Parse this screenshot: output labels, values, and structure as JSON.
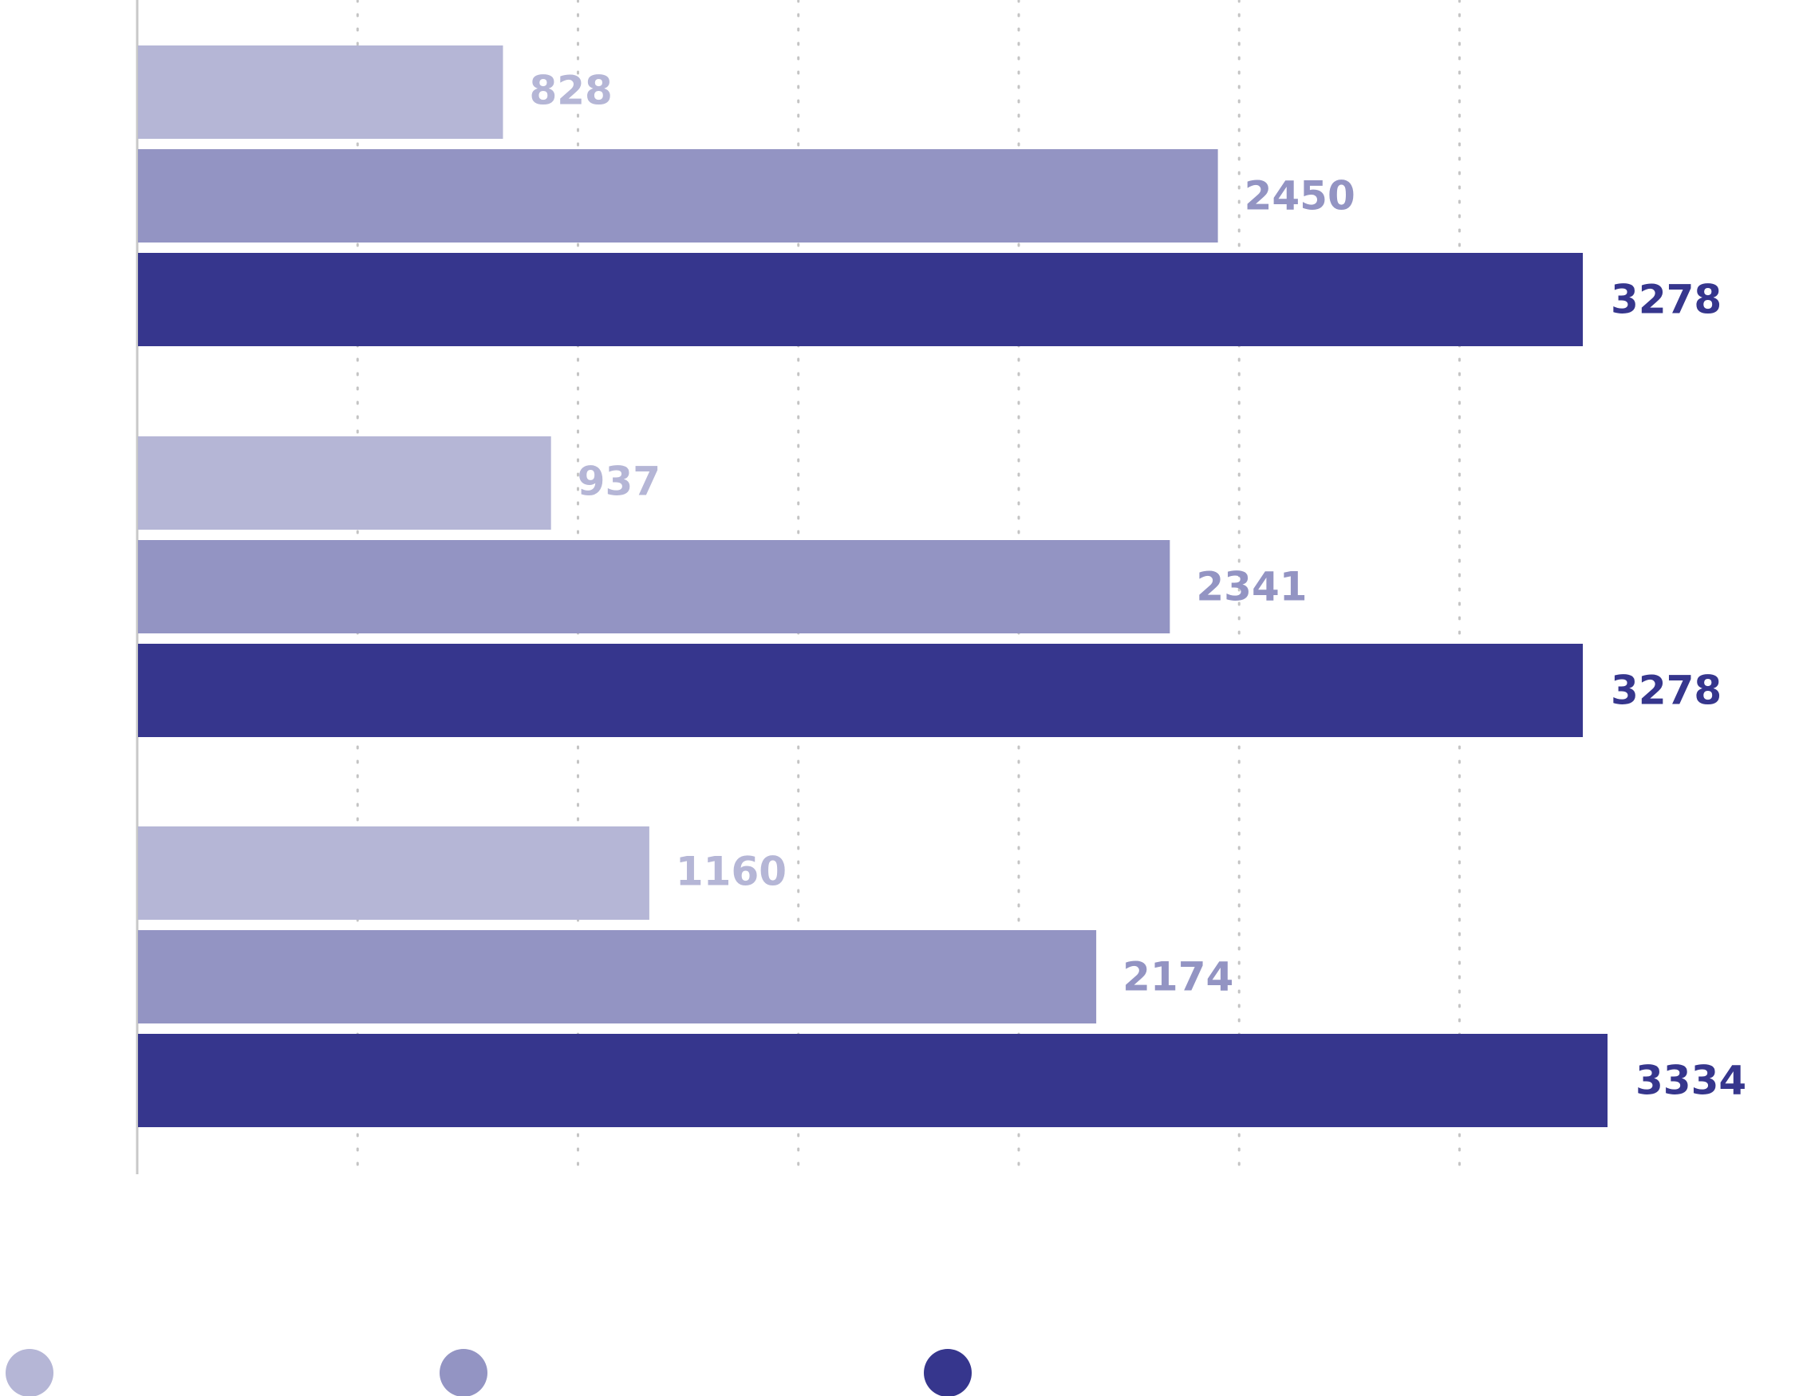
{
  "chart_data": {
    "type": "bar",
    "orientation": "horizontal",
    "title": "",
    "xlabel": "",
    "ylabel": "",
    "categories": [
      "",
      "",
      ""
    ],
    "xlim": [
      0,
      3500
    ],
    "grid": "vertical-dotted",
    "legend": "bottom",
    "series": [
      {
        "name": "",
        "color": "#b5b6d6",
        "values": [
          828,
          937,
          1160
        ]
      },
      {
        "name": "",
        "color": "#9394c3",
        "values": [
          2450,
          2341,
          2174
        ]
      },
      {
        "name": "",
        "color": "#36368d",
        "values": [
          3278,
          3278,
          3334
        ]
      }
    ],
    "data_labels": [
      [
        "828",
        "937",
        "1160"
      ],
      [
        "2450",
        "2341",
        "2174"
      ],
      [
        "3278",
        "3278",
        "3334"
      ]
    ]
  }
}
